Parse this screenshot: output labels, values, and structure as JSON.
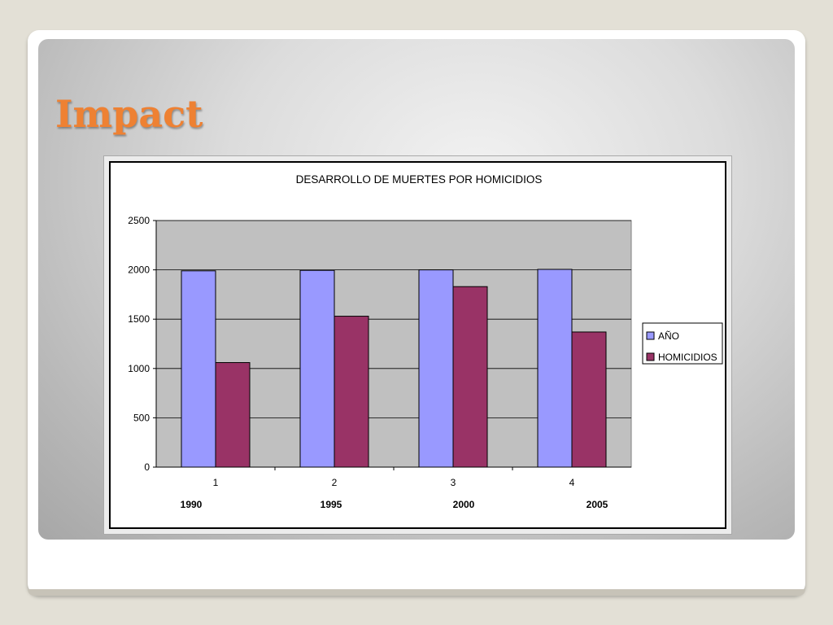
{
  "slide": {
    "title": "Impact"
  },
  "chart_data": {
    "type": "bar",
    "title": "DESARROLLO DE MUERTES POR HOMICIDIOS",
    "xlabel": "",
    "ylabel": "",
    "categories": [
      "1",
      "2",
      "3",
      "4"
    ],
    "category_sublabels": [
      "1990",
      "1995",
      "2000",
      "2005"
    ],
    "series": [
      {
        "name": "AÑO",
        "values": [
          1990,
          1995,
          2000,
          2005
        ],
        "color": "#9999ff"
      },
      {
        "name": "HOMICIDIOS",
        "values": [
          1060,
          1530,
          1830,
          1370
        ],
        "color": "#993366"
      }
    ],
    "ylim": [
      0,
      2500
    ],
    "yticks": [
      0,
      500,
      1000,
      1500,
      2000,
      2500
    ],
    "grid": true,
    "legend": "right",
    "plot_background": "#c0c0c0"
  }
}
